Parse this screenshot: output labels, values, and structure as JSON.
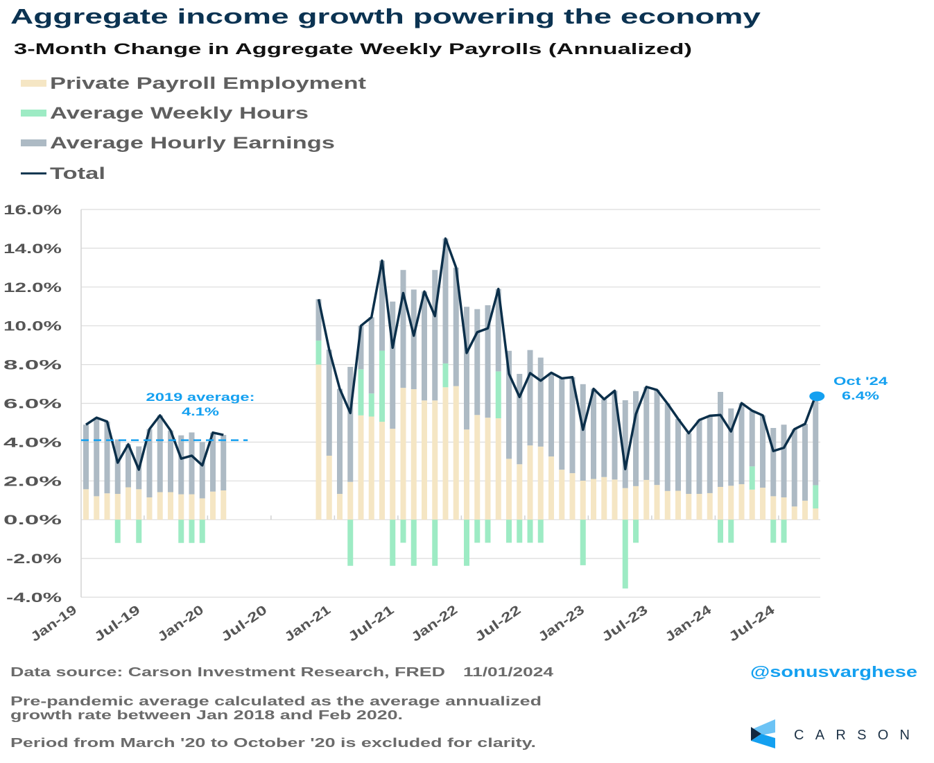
{
  "title": "Aggregate income growth powering the economy",
  "subtitle": "3-Month Change in Aggregate Weekly Payrolls (Annualized)",
  "colors": {
    "title": "#0b3352",
    "employment": "#f5e6c4",
    "hours": "#9debc4",
    "earnings": "#adbac4",
    "total": "#0b2f4a",
    "accent": "#14a0f0"
  },
  "chart_data": {
    "type": "bar",
    "stacked": true,
    "grid": true,
    "legend_placement": "top-left",
    "ylim": [
      -4,
      16
    ],
    "yticks": [
      "16.0%",
      "14.0%",
      "12.0%",
      "10.0%",
      "8.0%",
      "6.0%",
      "4.0%",
      "2.0%",
      "0.0%",
      "-2.0%",
      "-4.0%"
    ],
    "ytick_values": [
      16,
      14,
      12,
      10,
      8,
      6,
      4,
      2,
      0,
      -2,
      -4
    ],
    "xticks": [
      "Jan-19",
      "Jul-19",
      "Jan-20",
      "Jul-20",
      "Jan-21",
      "Jul-21",
      "Jan-22",
      "Jul-22",
      "Jan-23",
      "Jul-23",
      "Jan-24",
      "Jul-24"
    ],
    "x_range": [
      "Jan-19",
      "Oct-24"
    ],
    "categories": [
      "Jan-19",
      "Feb-19",
      "Mar-19",
      "Apr-19",
      "May-19",
      "Jun-19",
      "Jul-19",
      "Aug-19",
      "Sep-19",
      "Oct-19",
      "Nov-19",
      "Dec-19",
      "Jan-20",
      "Feb-20",
      "Nov-20",
      "Dec-20",
      "Jan-21",
      "Feb-21",
      "Mar-21",
      "Apr-21",
      "May-21",
      "Jun-21",
      "Jul-21",
      "Aug-21",
      "Sep-21",
      "Oct-21",
      "Nov-21",
      "Dec-21",
      "Jan-22",
      "Feb-22",
      "Mar-22",
      "Apr-22",
      "May-22",
      "Jun-22",
      "Jul-22",
      "Aug-22",
      "Sep-22",
      "Oct-22",
      "Nov-22",
      "Dec-22",
      "Jan-23",
      "Feb-23",
      "Mar-23",
      "Apr-23",
      "May-23",
      "Jun-23",
      "Jul-23",
      "Aug-23",
      "Sep-23",
      "Oct-23",
      "Nov-23",
      "Dec-23",
      "Jan-24",
      "Feb-24",
      "Mar-24",
      "Apr-24",
      "May-24",
      "Jun-24",
      "Jul-24",
      "Aug-24",
      "Sep-24",
      "Oct-24"
    ],
    "series": [
      {
        "name": "Private Payroll Employment",
        "kind": "bar",
        "values": [
          1.57,
          1.21,
          1.36,
          1.33,
          1.67,
          1.57,
          1.15,
          1.42,
          1.42,
          1.31,
          1.31,
          1.1,
          1.45,
          1.51,
          8.0,
          3.3,
          1.33,
          1.95,
          5.38,
          5.32,
          5.05,
          4.69,
          6.8,
          6.73,
          6.15,
          6.15,
          6.83,
          6.89,
          4.65,
          5.4,
          5.26,
          5.23,
          3.14,
          2.86,
          3.83,
          3.77,
          3.26,
          2.58,
          2.4,
          2.01,
          2.1,
          2.2,
          2.07,
          1.63,
          1.73,
          2.05,
          1.79,
          1.48,
          1.49,
          1.33,
          1.33,
          1.37,
          1.69,
          1.75,
          1.83,
          1.55,
          1.65,
          1.21,
          1.15,
          0.68,
          0.98,
          0.58
        ]
      },
      {
        "name": "Average Weekly Hours",
        "kind": "bar",
        "values": [
          0,
          0,
          0,
          -1.2,
          0,
          -1.2,
          0,
          0,
          0,
          -1.2,
          -1.2,
          -1.2,
          0,
          0,
          1.24,
          0,
          0,
          -2.38,
          2.38,
          1.19,
          3.67,
          -2.38,
          -1.19,
          -2.38,
          0,
          -2.38,
          1.23,
          0,
          -2.38,
          -1.19,
          -1.19,
          2.42,
          -1.19,
          -1.19,
          -1.19,
          -1.19,
          0,
          0,
          0,
          -2.35,
          0,
          0,
          0,
          -3.55,
          -1.19,
          0,
          0,
          0,
          0,
          0,
          0,
          0,
          -1.19,
          -1.19,
          0,
          1.2,
          0,
          -1.19,
          -1.19,
          0,
          0,
          1.2
        ]
      },
      {
        "name": "Average Hourly Earnings",
        "kind": "bar",
        "values": [
          3.33,
          4.05,
          3.7,
          2.81,
          2.22,
          2.21,
          3.52,
          3.96,
          3.18,
          3.04,
          3.19,
          2.9,
          3.04,
          2.86,
          2.13,
          5.47,
          5.42,
          5.93,
          2.24,
          3.93,
          4.64,
          6.56,
          6.08,
          5.14,
          5.62,
          6.73,
          6.44,
          6.11,
          6.33,
          5.46,
          5.8,
          4.25,
          5.57,
          4.66,
          4.92,
          4.59,
          4.32,
          4.71,
          4.95,
          4.98,
          4.65,
          4.01,
          4.58,
          4.53,
          4.9,
          4.8,
          4.9,
          4.5,
          3.71,
          3.13,
          3.81,
          3.99,
          4.9,
          3.99,
          4.18,
          2.87,
          3.73,
          3.52,
          3.75,
          3.99,
          3.96,
          4.62
        ]
      },
      {
        "name": "Total",
        "kind": "line",
        "values": [
          4.9,
          5.26,
          5.06,
          2.94,
          3.89,
          2.58,
          4.67,
          5.38,
          4.6,
          3.15,
          3.3,
          2.8,
          4.49,
          4.37,
          11.37,
          8.77,
          6.75,
          5.5,
          10.0,
          10.44,
          13.36,
          8.87,
          11.69,
          9.49,
          11.77,
          10.5,
          14.5,
          13.0,
          8.6,
          9.67,
          9.87,
          11.9,
          7.52,
          6.33,
          7.56,
          7.17,
          7.58,
          7.29,
          7.35,
          4.64,
          6.75,
          6.21,
          6.65,
          2.61,
          5.44,
          6.85,
          6.69,
          5.98,
          5.2,
          4.46,
          5.14,
          5.36,
          5.4,
          4.55,
          6.01,
          5.62,
          5.38,
          3.54,
          3.71,
          4.67,
          4.94,
          6.4
        ]
      }
    ],
    "reference_line": {
      "value": 4.1,
      "from": "Jan-19",
      "to": "Feb-20",
      "label_line1": "2019 average:",
      "label_line2": "4.1%"
    },
    "callout": {
      "at": "Oct-24",
      "value": 6.4,
      "label_line1": "Oct '24",
      "label_line2": "6.4%"
    }
  },
  "footer": {
    "source": "Data source: Carson Investment Research, FRED",
    "date": "11/01/2024",
    "note1_line1": "Pre-pandemic average calculated as the average annualized",
    "note1_line2": "growth rate between Jan 2018 and Feb 2020.",
    "note2": "Period from March '20 to October '20 is excluded for clarity.",
    "handle": "@sonusvarghese",
    "brand": "CARSON"
  }
}
